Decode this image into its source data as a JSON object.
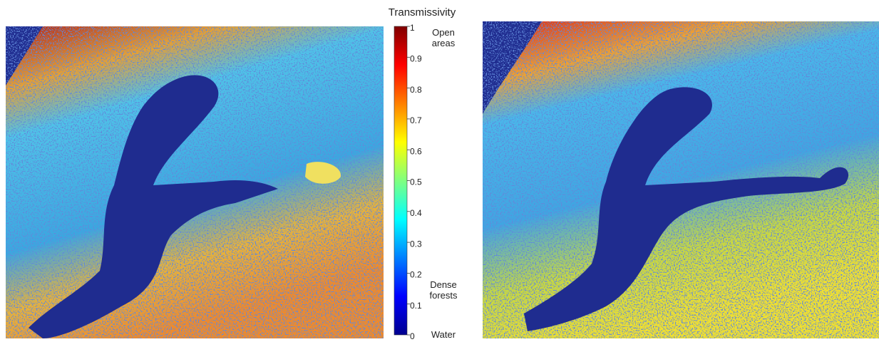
{
  "colorbar": {
    "title": "Transmissivity",
    "ticks": [
      0,
      0.1,
      0.2,
      0.3,
      0.4,
      0.5,
      0.6,
      0.7,
      0.8,
      0.9,
      1
    ],
    "annotations": [
      "Open areas",
      "Dense forests",
      "Water"
    ]
  }
}
